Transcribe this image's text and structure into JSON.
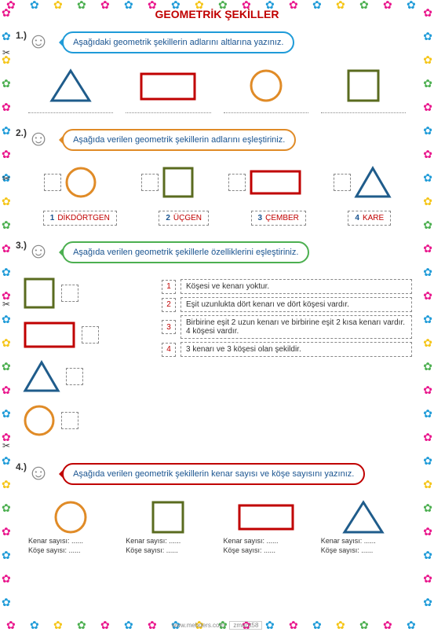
{
  "title": "GEOMETRİK ŞEKİLLER",
  "colors": {
    "triangle": "#1f5c8b",
    "rectangle": "#c00000",
    "circle": "#e08b27",
    "square": "#5a6b1f",
    "bubble1": "#1f9bd8",
    "bubble2": "#e08b27",
    "bubble3": "#4caf50",
    "bubble4": "#c00000",
    "title": "#c00000",
    "text": "#1a5490"
  },
  "q1": {
    "num": "1.)",
    "prompt": "Aşağıdaki geometrik şekillerin adlarını altlarına yazınız.",
    "shapes": [
      "triangle",
      "rectangle",
      "circle",
      "square"
    ]
  },
  "q2": {
    "num": "2.)",
    "prompt": "Aşağıda verilen geometrik şekillerin adlarını eşleştiriniz.",
    "shapes": [
      "circle",
      "square",
      "rectangle",
      "triangle"
    ],
    "labels": [
      {
        "n": "1",
        "t": "DİKDÖRTGEN"
      },
      {
        "n": "2",
        "t": "ÜÇGEN"
      },
      {
        "n": "3",
        "t": "ÇEMBER"
      },
      {
        "n": "4",
        "t": "KARE"
      }
    ]
  },
  "q3": {
    "num": "3.)",
    "prompt": "Aşağıda verilen geometrik şekillerle özelliklerini eşleştiriniz.",
    "shapes": [
      "square",
      "rectangle",
      "triangle",
      "circle"
    ],
    "opts": [
      {
        "n": "1",
        "t": "Köşesi ve kenarı yoktur."
      },
      {
        "n": "2",
        "t": "Eşit uzunlukta  dört kenarı ve dört köşesi vardır."
      },
      {
        "n": "3",
        "t": "Birbirine eşit 2 uzun kenarı ve birbirine eşit 2 kısa kenarı vardır. 4 köşesi vardır."
      },
      {
        "n": "4",
        "t": "3 kenarı ve 3 köşesi olan şekildir."
      }
    ]
  },
  "q4": {
    "num": "4.)",
    "prompt": "Aşağıda verilen geometrik şekillerin kenar sayısı ve köşe sayısını yazınız.",
    "shapes": [
      "circle",
      "square",
      "rectangle",
      "triangle"
    ],
    "kenar": "Kenar sayısı: ......",
    "kose": "Köşe sayısı: ......"
  },
  "footer": {
    "site": "www.mebders.com",
    "author": "zmacit58"
  }
}
